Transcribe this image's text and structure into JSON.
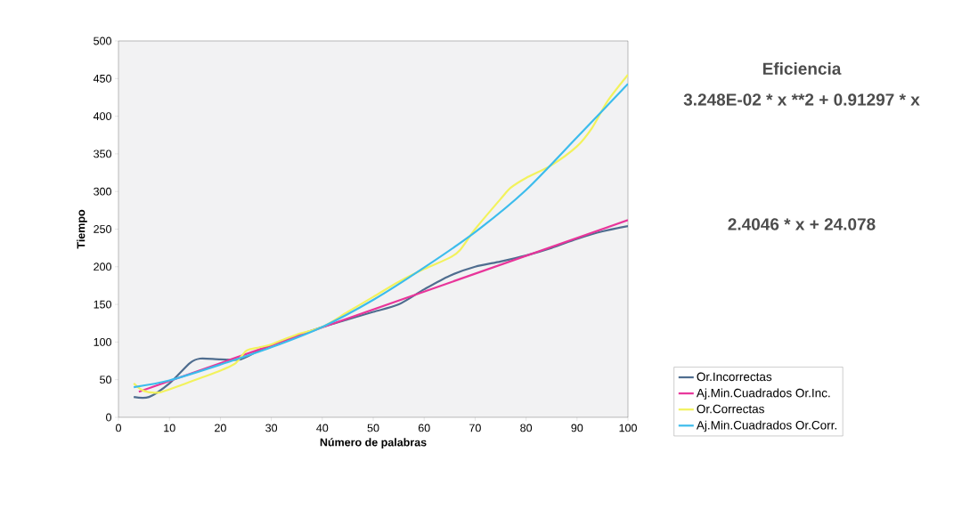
{
  "chart_data": {
    "type": "line",
    "title": "Eficiencia",
    "xlabel": "Número de palabras",
    "ylabel": "Tiempo",
    "annotations": [
      "3.248E-02 * x **2 + 0.91297 * x",
      "2.4046 * x + 24.078"
    ],
    "xlim": [
      0,
      100
    ],
    "ylim": [
      0,
      500
    ],
    "xticks": [
      0,
      10,
      20,
      30,
      40,
      50,
      60,
      70,
      80,
      90,
      100
    ],
    "yticks": [
      0,
      50,
      100,
      150,
      200,
      250,
      300,
      350,
      400,
      450,
      500
    ],
    "grid": false,
    "legend": "right",
    "marker": "none",
    "line_style": "solid",
    "series": [
      {
        "name": "Or.Incorrectas",
        "color": "#4f6d8f",
        "x": [
          3,
          6,
          10,
          14,
          16,
          20,
          24,
          28,
          34,
          40,
          45,
          50,
          55,
          60,
          65,
          70,
          75,
          80,
          85,
          90,
          95,
          100
        ],
        "values": [
          27,
          27,
          45,
          72,
          78,
          77,
          77,
          90,
          106,
          120,
          130,
          140,
          150,
          170,
          188,
          200,
          207,
          215,
          225,
          237,
          247,
          254
        ]
      },
      {
        "name": "Aj.Min.Cuadrados Or.Inc.",
        "color": "#e8359a",
        "x": [
          4,
          100
        ],
        "values": [
          34,
          262
        ]
      },
      {
        "name": "Or.Correctas",
        "color": "#f2f25c",
        "x": [
          3,
          5,
          8,
          12,
          16,
          20,
          23,
          25,
          27,
          30,
          35,
          40,
          45,
          50,
          55,
          60,
          65,
          67,
          70,
          75,
          77,
          80,
          85,
          90,
          93,
          96,
          100
        ],
        "values": [
          45,
          35,
          33,
          42,
          52,
          62,
          72,
          88,
          92,
          97,
          110,
          120,
          140,
          160,
          180,
          197,
          212,
          222,
          250,
          290,
          305,
          318,
          335,
          360,
          385,
          420,
          455
        ]
      },
      {
        "name": "Aj.Min.Cuadrados Or.Corr.",
        "color": "#3cbcec",
        "x": [
          3,
          10,
          20,
          30,
          40,
          50,
          60,
          70,
          80,
          90,
          100
        ],
        "values": [
          40,
          49,
          70,
          93,
          120,
          156,
          199,
          246,
          302,
          372,
          443
        ]
      }
    ]
  }
}
